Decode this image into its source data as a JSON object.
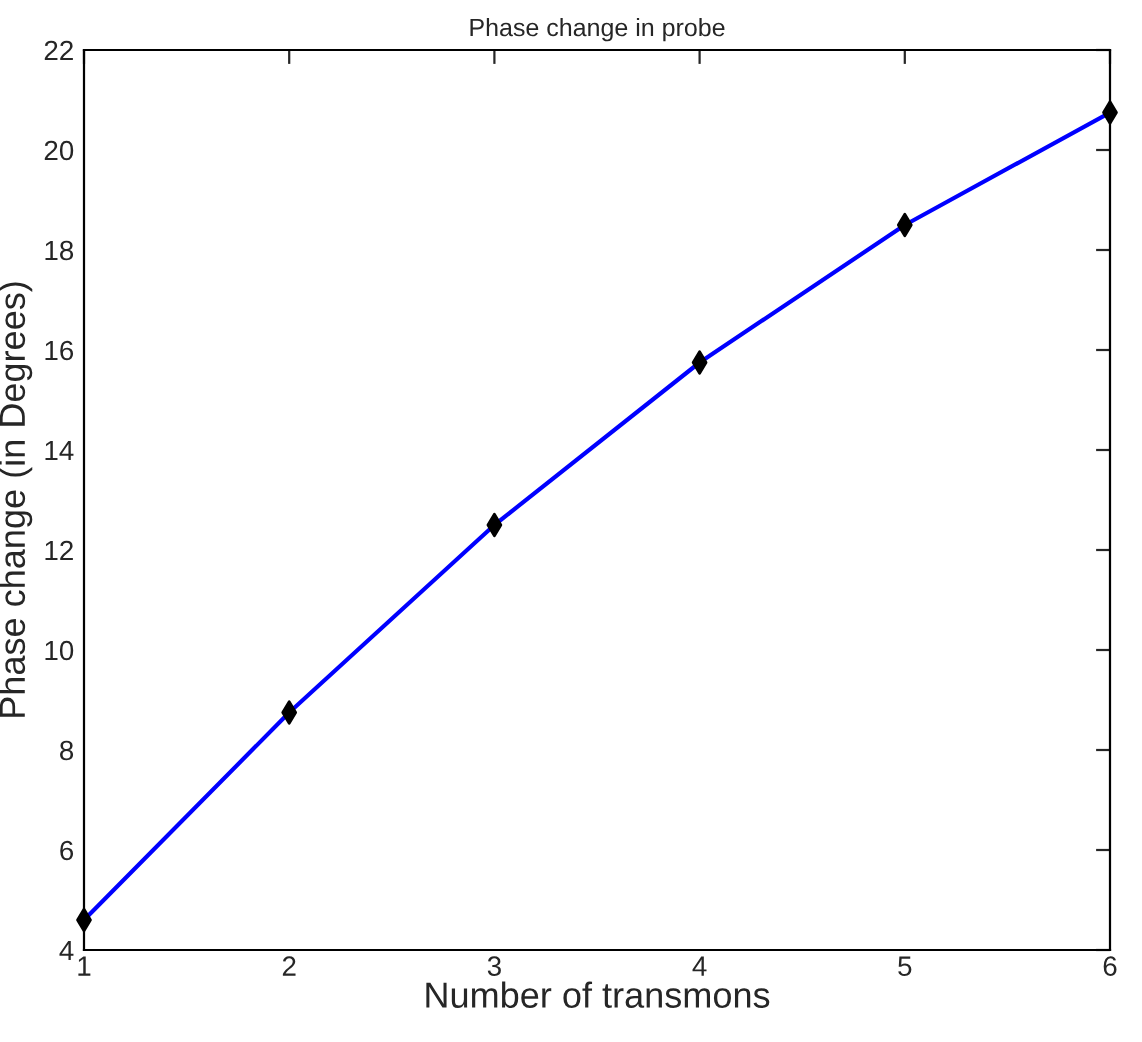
{
  "chart_data": {
    "type": "line",
    "title": "Phase change in probe",
    "xlabel": "Number of transmons",
    "ylabel": "Phase change (in Degrees)",
    "x": [
      1,
      2,
      3,
      4,
      5,
      6
    ],
    "series": [
      {
        "type": "line",
        "color": "#0000ff",
        "marker": "none",
        "values": [
          4.6,
          8.75,
          12.5,
          15.75,
          18.5,
          20.75
        ]
      },
      {
        "type": "scatter",
        "color": "#000000",
        "marker": "diamond",
        "values": [
          4.6,
          8.75,
          12.5,
          15.75,
          18.5,
          20.75
        ]
      }
    ],
    "xlim": [
      1,
      6
    ],
    "xticks": [
      1,
      2,
      3,
      4,
      5,
      6
    ],
    "ylim": [
      4,
      22
    ],
    "yticks": [
      4,
      6,
      8,
      10,
      12,
      14,
      16,
      18,
      20,
      22
    ],
    "grid": false,
    "legend": false
  }
}
